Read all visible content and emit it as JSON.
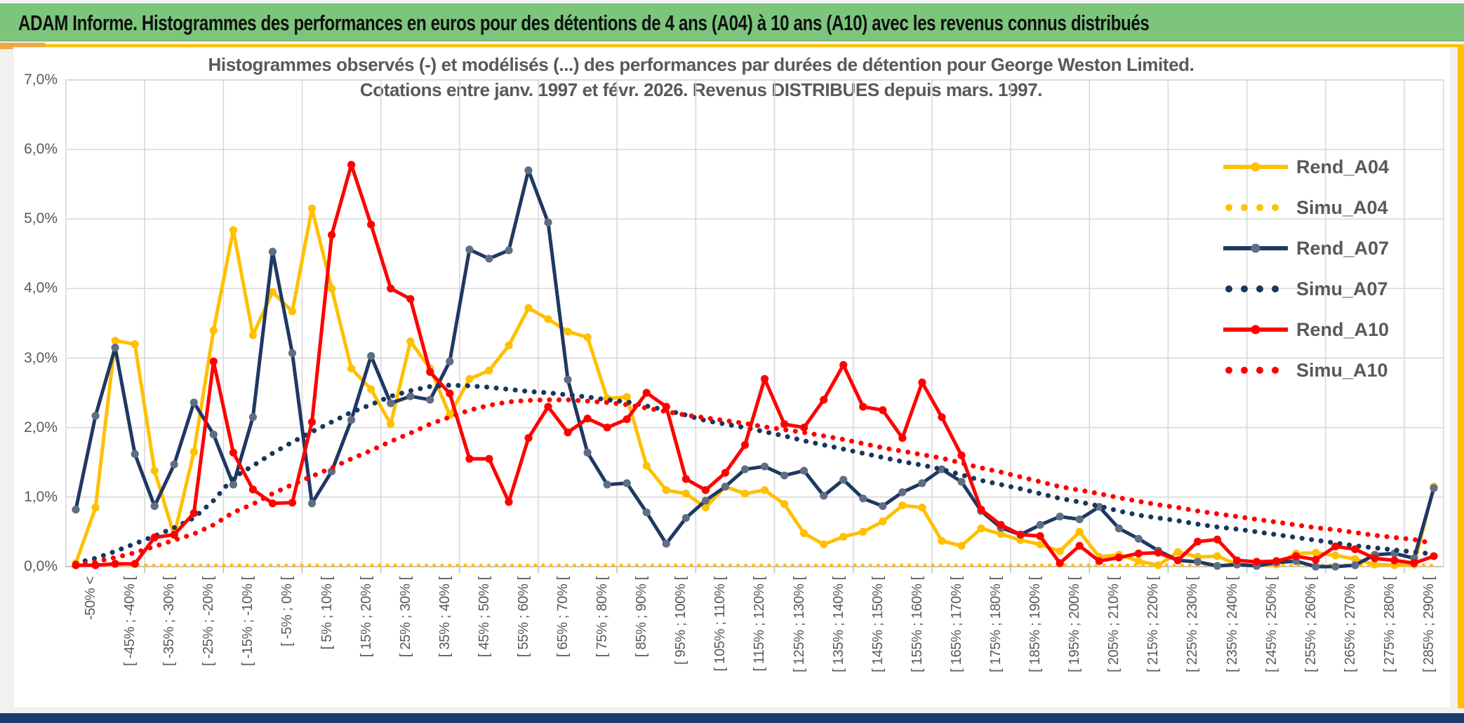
{
  "banner": {
    "title": "ADAM Informe. Histogrammes des performances en euros pour des détentions de 4 ans (A04) à 10 ans (A10) avec les revenus connus distribués"
  },
  "chart_data": {
    "type": "line",
    "title_line1": "Histogrammes observés (-) et modélisés (...) des performances par durées de détention pour George Weston Limited.",
    "title_line2": "Cotations entre janv. 1997 et févr. 2026. Revenus DISTRIBUES depuis mars. 1997.",
    "xlabel": "",
    "ylabel": "",
    "ylim": [
      0,
      7
    ],
    "grid": true,
    "legend_position": "right",
    "y_ticks": [
      "0,0%",
      "1,0%",
      "2,0%",
      "3,0%",
      "4,0%",
      "5,0%",
      "6,0%",
      "7,0%"
    ],
    "bin_count": 70,
    "labels_every_n_bins": 2,
    "categories": [
      "-50% <",
      "[ -45% ; -40% [",
      "[ -35% ; -30% [",
      "[ -25% ; -20% [",
      "[ -15% ; -10% [",
      "[ -5% ; 0% [",
      "[ 5% ; 10% [",
      "[ 15% ; 20% [",
      "[ 25% ; 30% [",
      "[ 35% ; 40% [",
      "[ 45% ; 50% [",
      "[ 55% ; 60% [",
      "[ 65% ; 70% [",
      "[ 75% ; 80% [",
      "[ 85% ; 90% [",
      "[ 95% ; 100% [",
      "[ 105% ; 110% [",
      "[ 115% ; 120% [",
      "[ 125% ; 130% [",
      "[ 135% ; 140% [",
      "[ 145% ; 150% [",
      "[ 155% ; 160% [",
      "[ 165% ; 170% [",
      "[ 175% ; 180% [",
      "[ 185% ; 190% [",
      "[ 195% ; 200% [",
      "[ 205% ; 210% [",
      "[ 215% ; 220% [",
      "[ 225% ; 230% [",
      "[ 235% ; 240% [",
      "[ 245% ; 250% [",
      "[ 255% ; 260% [",
      "[ 265% ; 270% [",
      "[ 275% ; 280% [",
      "[ 285% ; 290% ["
    ],
    "series": [
      {
        "name": "Rend_A04",
        "style": "solid",
        "color": "#FFC000",
        "marker_color": "#FFC000",
        "width": 5,
        "marker": true,
        "values": [
          0.05,
          0.85,
          3.25,
          3.2,
          1.38,
          0.45,
          1.65,
          3.4,
          4.84,
          3.33,
          3.95,
          3.67,
          5.15,
          4.0,
          2.85,
          2.55,
          2.05,
          3.24,
          2.85,
          2.18,
          2.7,
          2.82,
          3.18,
          3.72,
          3.56,
          3.38,
          3.3,
          2.42,
          2.44,
          1.45,
          1.1,
          1.05,
          0.85,
          1.15,
          1.05,
          1.1,
          0.9,
          0.48,
          0.32,
          0.43,
          0.5,
          0.65,
          0.88,
          0.85,
          0.37,
          0.3,
          0.55,
          0.47,
          0.38,
          0.32,
          0.22,
          0.5,
          0.14,
          0.17,
          0.08,
          0.02,
          0.21,
          0.14,
          0.15,
          0.03,
          0.02,
          0.03,
          0.19,
          0.2,
          0.16,
          0.11,
          0.03,
          0.02,
          0.03,
          1.15
        ]
      },
      {
        "name": "Simu_A04",
        "style": "dotted",
        "color": "#FFC000",
        "marker_color": "#FFC000",
        "width": 5,
        "marker": false,
        "values": [
          0.02,
          0.02,
          0.02,
          0.02,
          0.02,
          0.02,
          0.02,
          0.02,
          0.02,
          0.02,
          0.02,
          0.02,
          0.02,
          0.02,
          0.02,
          0.02,
          0.02,
          0.02,
          0.02,
          0.02,
          0.02,
          0.02,
          0.02,
          0.02,
          0.02,
          0.02,
          0.02,
          0.02,
          0.02,
          0.02,
          0.02,
          0.02,
          0.02,
          0.02,
          0.02,
          0.02,
          0.02,
          0.02,
          0.02,
          0.02,
          0.02,
          0.02,
          0.02,
          0.02,
          0.02,
          0.02,
          0.02,
          0.02,
          0.02,
          0.02,
          0.02,
          0.02,
          0.02,
          0.02,
          0.02,
          0.02,
          0.02,
          0.02,
          0.02,
          0.02,
          0.02,
          0.02,
          0.02,
          0.02,
          0.02,
          0.02,
          0.02,
          0.02,
          0.02,
          0.02
        ]
      },
      {
        "name": "Rend_A07",
        "style": "solid",
        "color": "#1F3864",
        "marker_color": "#5E6F83",
        "width": 5,
        "marker": true,
        "values": [
          0.82,
          2.17,
          3.15,
          1.62,
          0.87,
          1.47,
          2.36,
          1.9,
          1.18,
          2.15,
          4.53,
          3.07,
          0.91,
          1.37,
          2.11,
          3.03,
          2.35,
          2.45,
          2.4,
          2.95,
          4.56,
          4.43,
          4.55,
          5.7,
          4.95,
          2.69,
          1.64,
          1.18,
          1.2,
          0.78,
          0.33,
          0.7,
          0.95,
          1.15,
          1.4,
          1.44,
          1.31,
          1.38,
          1.02,
          1.25,
          0.98,
          0.87,
          1.07,
          1.2,
          1.4,
          1.22,
          0.8,
          0.56,
          0.46,
          0.6,
          0.72,
          0.68,
          0.86,
          0.55,
          0.4,
          0.23,
          0.09,
          0.07,
          0.01,
          0.03,
          0.01,
          0.06,
          0.08,
          0.0,
          0.0,
          0.02,
          0.17,
          0.19,
          0.12,
          1.13
        ]
      },
      {
        "name": "Simu_A07",
        "style": "dotted",
        "color": "#17375E",
        "marker_color": "#17375E",
        "width": 7,
        "marker": false,
        "values": [
          0.05,
          0.12,
          0.22,
          0.33,
          0.44,
          0.56,
          0.7,
          0.95,
          1.28,
          1.45,
          1.63,
          1.79,
          1.94,
          2.08,
          2.22,
          2.33,
          2.45,
          2.53,
          2.59,
          2.61,
          2.6,
          2.58,
          2.55,
          2.52,
          2.5,
          2.47,
          2.44,
          2.4,
          2.37,
          2.31,
          2.25,
          2.18,
          2.1,
          2.05,
          2.0,
          1.94,
          1.88,
          1.81,
          1.75,
          1.69,
          1.63,
          1.57,
          1.51,
          1.46,
          1.4,
          1.32,
          1.24,
          1.18,
          1.12,
          1.05,
          0.98,
          0.93,
          0.87,
          0.8,
          0.74,
          0.7,
          0.66,
          0.61,
          0.57,
          0.54,
          0.5,
          0.46,
          0.42,
          0.38,
          0.34,
          0.3,
          0.27,
          0.24,
          0.21,
          0.18
        ]
      },
      {
        "name": "Rend_A10",
        "style": "solid",
        "color": "#FF0000",
        "marker_color": "#FF0000",
        "width": 5,
        "marker": true,
        "values": [
          0.02,
          0.02,
          0.04,
          0.04,
          0.42,
          0.46,
          0.77,
          2.95,
          1.64,
          1.11,
          0.91,
          0.92,
          2.08,
          4.77,
          5.78,
          4.92,
          4.0,
          3.85,
          2.8,
          2.49,
          1.55,
          1.55,
          0.93,
          1.85,
          2.3,
          1.93,
          2.13,
          2.0,
          2.12,
          2.5,
          2.3,
          1.26,
          1.1,
          1.35,
          1.75,
          2.7,
          2.05,
          2.0,
          2.4,
          2.9,
          2.3,
          2.25,
          1.85,
          2.65,
          2.15,
          1.6,
          0.82,
          0.6,
          0.46,
          0.44,
          0.05,
          0.3,
          0.08,
          0.13,
          0.19,
          0.2,
          0.09,
          0.36,
          0.39,
          0.09,
          0.07,
          0.08,
          0.15,
          0.1,
          0.29,
          0.25,
          0.12,
          0.09,
          0.05,
          0.15
        ]
      },
      {
        "name": "Simu_A10",
        "style": "dotted",
        "color": "#FF0000",
        "marker_color": "#FF0000",
        "width": 7,
        "marker": false,
        "values": [
          0.02,
          0.07,
          0.13,
          0.2,
          0.29,
          0.38,
          0.47,
          0.6,
          0.78,
          0.9,
          1.05,
          1.18,
          1.3,
          1.42,
          1.55,
          1.67,
          1.8,
          1.92,
          2.05,
          2.15,
          2.25,
          2.32,
          2.37,
          2.39,
          2.4,
          2.4,
          2.38,
          2.36,
          2.33,
          2.28,
          2.23,
          2.18,
          2.14,
          2.1,
          2.06,
          2.01,
          1.97,
          1.93,
          1.88,
          1.83,
          1.77,
          1.71,
          1.66,
          1.61,
          1.56,
          1.49,
          1.42,
          1.36,
          1.29,
          1.22,
          1.15,
          1.1,
          1.05,
          0.99,
          0.94,
          0.89,
          0.85,
          0.8,
          0.76,
          0.72,
          0.68,
          0.64,
          0.6,
          0.56,
          0.53,
          0.49,
          0.45,
          0.42,
          0.39,
          0.33
        ]
      }
    ],
    "colors": {
      "grid": "#D9D9D9",
      "axis": "#BFBFBF",
      "label": "#595959",
      "banner_green": "#7DC57D",
      "accent_gold": "#FFC000",
      "accent_blue": "#1E3A6E"
    }
  }
}
